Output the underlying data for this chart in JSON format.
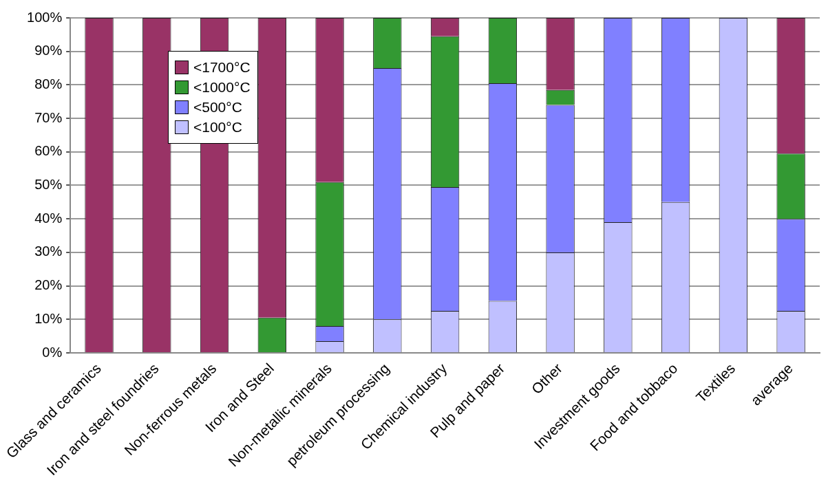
{
  "chart_data": {
    "type": "bar",
    "stacked": true,
    "categories": [
      "Glass and ceramics",
      "Iron and steel foundries",
      "Non-ferrous metals",
      "Iron and Steel",
      "Non-metallic minerals",
      "petroleum processing",
      "Chemical industry",
      "Pulp and paper",
      "Other",
      "Investment goods",
      "Food and tobbaco",
      "Textiles",
      "average"
    ],
    "series": [
      {
        "name": "<100°C",
        "color": "#c0c0ff",
        "values": [
          null,
          null,
          null,
          null,
          3.5,
          10,
          12.5,
          15.5,
          30,
          39,
          45,
          100,
          12.5
        ]
      },
      {
        "name": "<500°C",
        "color": "#8080ff",
        "values": [
          null,
          null,
          null,
          null,
          4.5,
          75,
          37,
          65,
          44,
          61,
          55,
          null,
          27.5
        ]
      },
      {
        "name": "<1000°C",
        "color": "#339933",
        "values": [
          null,
          null,
          null,
          10.5,
          43,
          15,
          45,
          19.5,
          4.5,
          null,
          null,
          null,
          19.5
        ]
      },
      {
        "name": "<1700°C",
        "color": "#993366",
        "values": [
          100,
          100,
          100,
          89.5,
          49,
          null,
          5.5,
          null,
          21.5,
          null,
          null,
          null,
          40.5
        ]
      }
    ],
    "ylim": [
      0,
      100
    ],
    "yticks": [
      {
        "value": 0,
        "label": "0%"
      },
      {
        "value": 10,
        "label": "10%"
      },
      {
        "value": 20,
        "label": "20%"
      },
      {
        "value": 30,
        "label": "30%"
      },
      {
        "value": 40,
        "label": "40%"
      },
      {
        "value": 50,
        "label": "50%"
      },
      {
        "value": 60,
        "label": "60%"
      },
      {
        "value": 70,
        "label": "70%"
      },
      {
        "value": 80,
        "label": "80%"
      },
      {
        "value": 90,
        "label": "90%"
      },
      {
        "value": 100,
        "label": "100%"
      }
    ],
    "grid": "y",
    "legend": "top left"
  }
}
